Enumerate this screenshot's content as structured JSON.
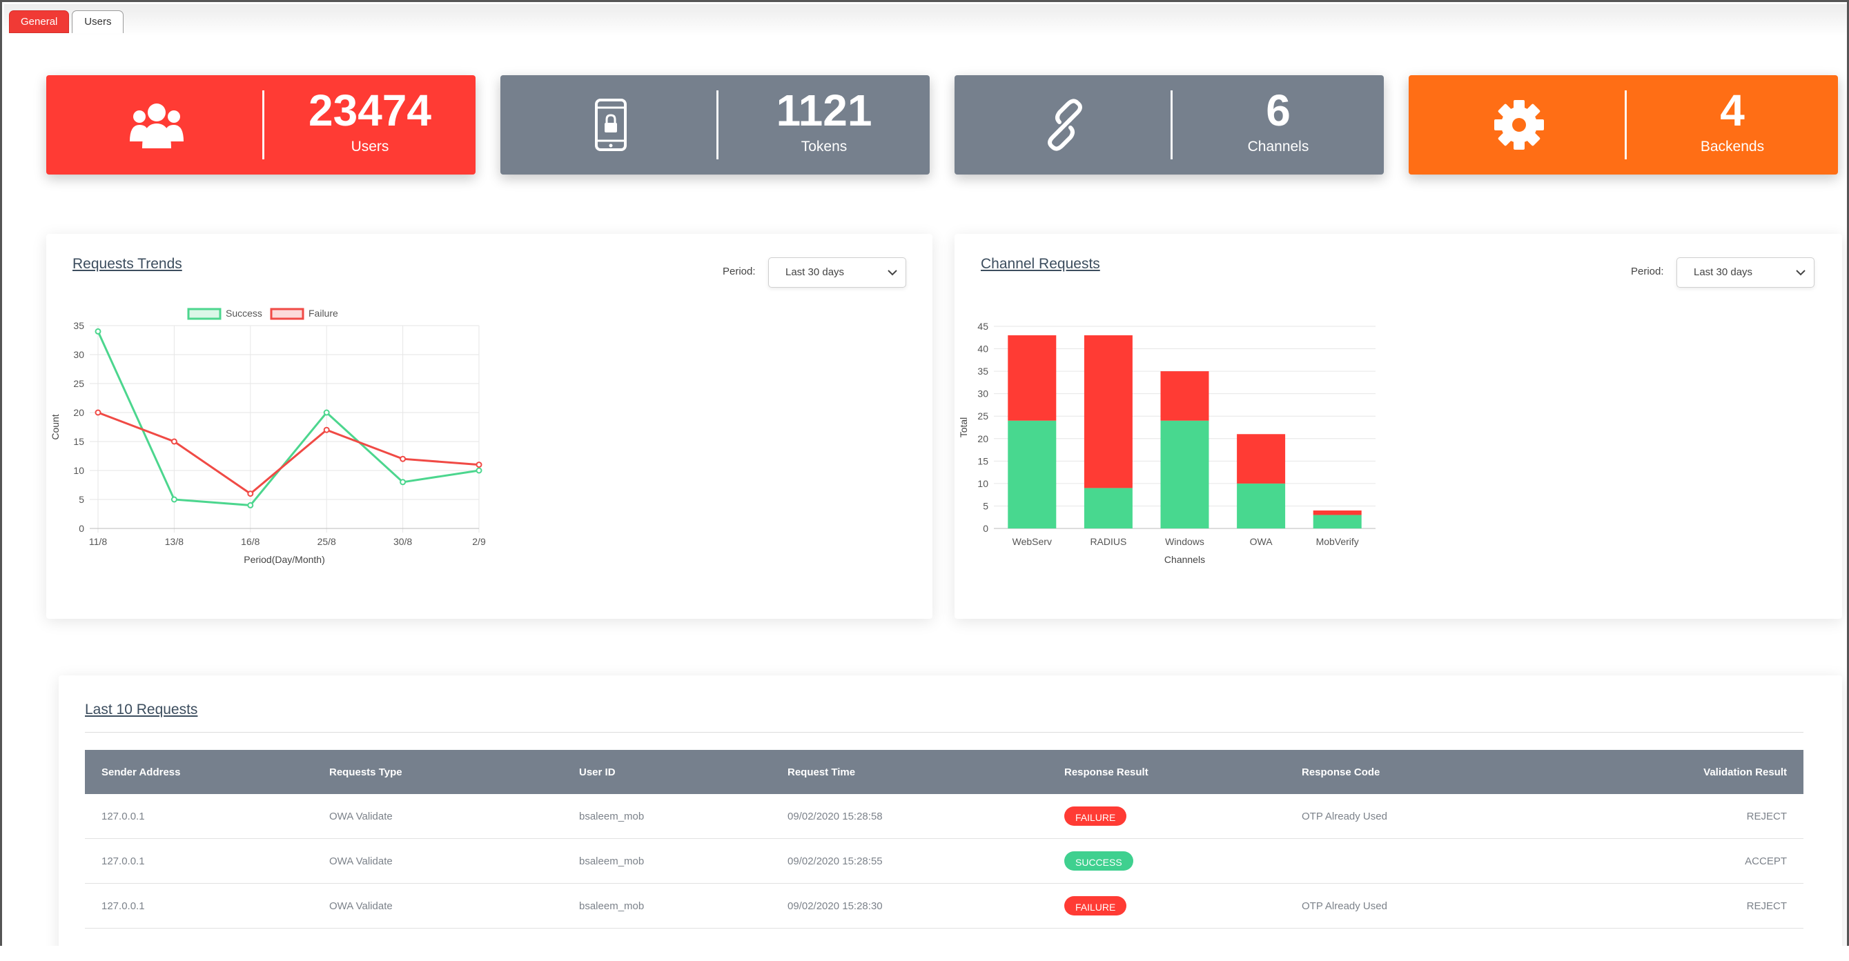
{
  "tabs": [
    {
      "label": "General",
      "active": true
    },
    {
      "label": "Users",
      "active": false
    }
  ],
  "stats": [
    {
      "value": "23474",
      "label": "Users",
      "icon": "users-icon",
      "color": "#ff3b34"
    },
    {
      "value": "1121",
      "label": "Tokens",
      "icon": "mobile-lock-icon",
      "color": "#76808d"
    },
    {
      "value": "6",
      "label": "Channels",
      "icon": "link-icon",
      "color": "#76808d"
    },
    {
      "value": "4",
      "label": "Backends",
      "icon": "gear-icon",
      "color": "#ff6e15"
    }
  ],
  "requests_trends": {
    "title": "Requests Trends",
    "period_label": "Period:",
    "period_value": "Last 30 days"
  },
  "channel_requests": {
    "title": "Channel Requests",
    "period_label": "Period:",
    "period_value": "Last 30 days"
  },
  "chart_data": [
    {
      "type": "line",
      "x": [
        "11/8",
        "13/8",
        "16/8",
        "25/8",
        "30/8",
        "2/9"
      ],
      "series": [
        {
          "name": "Success",
          "values": [
            34,
            5,
            4,
            20,
            8,
            10
          ],
          "color": "#4cd68e"
        },
        {
          "name": "Failure",
          "values": [
            20,
            15,
            6,
            17,
            12,
            11
          ],
          "color": "#f04a45"
        }
      ],
      "xlabel": "Period(Day/Month)",
      "ylabel": "Count",
      "ylim": [
        0,
        35
      ],
      "yticks": [
        0,
        5,
        10,
        15,
        20,
        25,
        30,
        35
      ],
      "grid": true,
      "legend": "top"
    },
    {
      "type": "bar",
      "stacked": true,
      "categories": [
        "WebServ",
        "RADIUS",
        "Windows",
        "OWA",
        "MobVerify"
      ],
      "series": [
        {
          "name": "Success",
          "values": [
            24,
            9,
            24,
            10,
            3
          ],
          "color": "#48d88f"
        },
        {
          "name": "Failure",
          "values": [
            19,
            34,
            11,
            11,
            1
          ],
          "color": "#ff3b34"
        }
      ],
      "xlabel": "Channels",
      "ylabel": "Total",
      "ylim": [
        0,
        45
      ],
      "yticks": [
        0,
        5,
        10,
        15,
        20,
        25,
        30,
        35,
        40,
        45
      ],
      "grid": true
    }
  ],
  "last_requests": {
    "title": "Last 10 Requests",
    "columns": [
      "Sender Address",
      "Requests Type",
      "User ID",
      "Request Time",
      "Response Result",
      "Response Code",
      "Validation Result"
    ],
    "rows": [
      {
        "sender": "127.0.0.1",
        "type": "OWA Validate",
        "user": "bsaleem_mob",
        "time": "09/02/2020 15:28:58",
        "result": "FAILURE",
        "result_color": "#ff3b34",
        "code": "OTP Already Used",
        "validation": "REJECT"
      },
      {
        "sender": "127.0.0.1",
        "type": "OWA Validate",
        "user": "bsaleem_mob",
        "time": "09/02/2020 15:28:55",
        "result": "SUCCESS",
        "result_color": "#3fd08f",
        "code": "",
        "validation": "ACCEPT"
      },
      {
        "sender": "127.0.0.1",
        "type": "OWA Validate",
        "user": "bsaleem_mob",
        "time": "09/02/2020 15:28:30",
        "result": "FAILURE",
        "result_color": "#ff3b34",
        "code": "OTP Already Used",
        "validation": "REJECT"
      }
    ]
  }
}
